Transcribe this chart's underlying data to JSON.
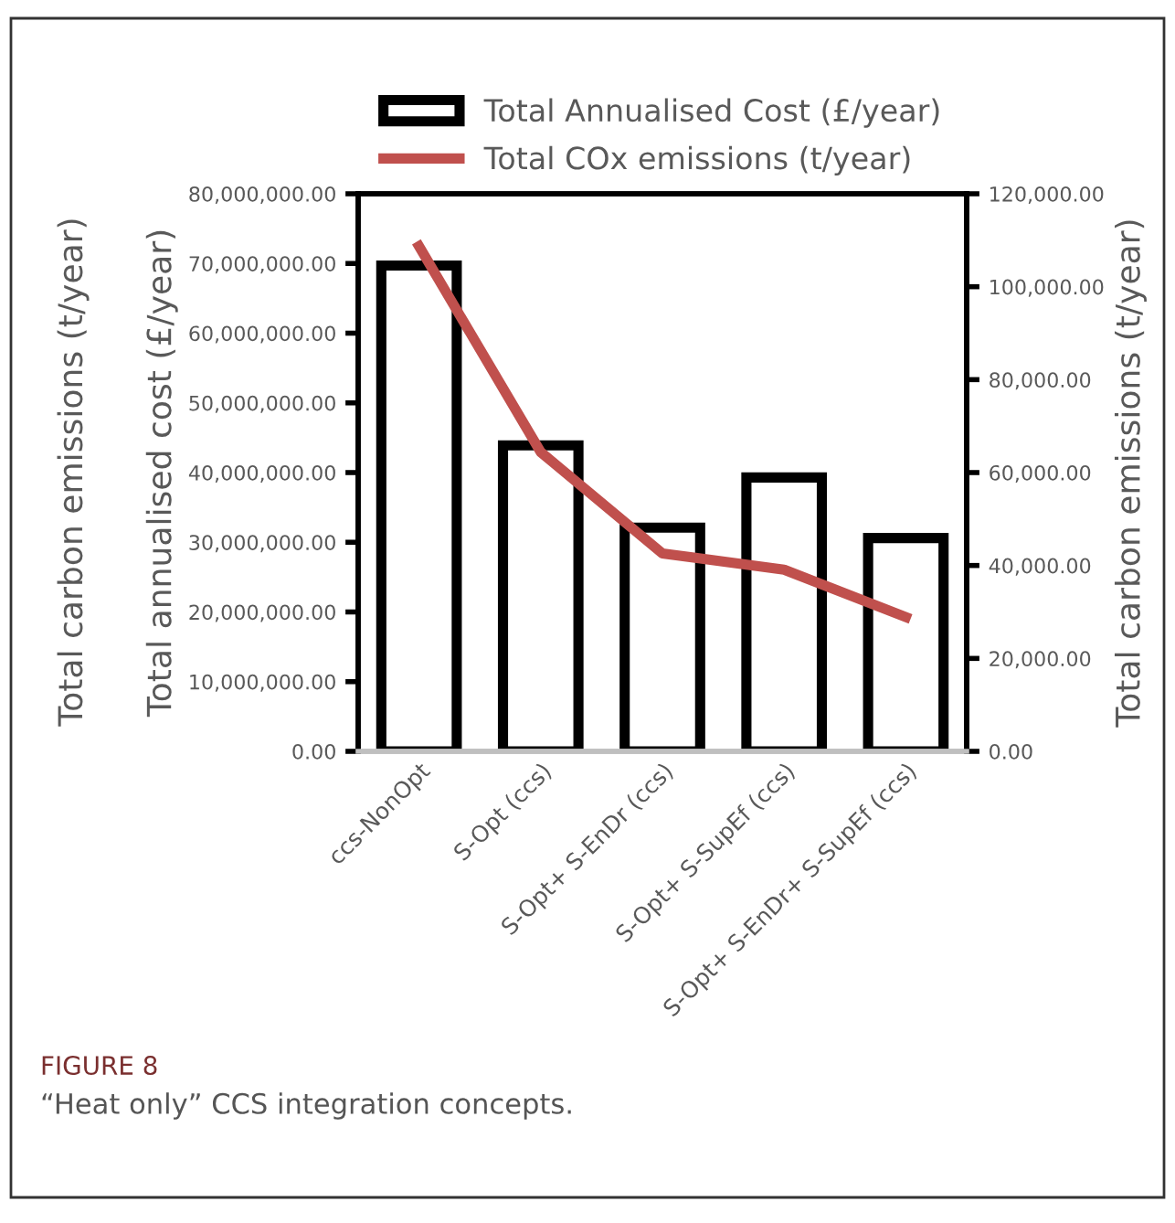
{
  "chart_data": {
    "type": "bar",
    "categories": [
      "ccs-NonOpt",
      "S-Opt (ccs)",
      "S-Opt+ S-EnDr (ccs)",
      "S-Opt+ S-SupEf (ccs)",
      "S-Opt+ S-EnDr+ S-SupEf (ccs)"
    ],
    "series": [
      {
        "name": "Total Annualised Cost (£/year)",
        "color": "#000000",
        "values": [
          69700000,
          43900000,
          32100000,
          39300000,
          30600000
        ]
      },
      {
        "name": "Total COx emissions (t/year)",
        "type": "line",
        "axis": "y2",
        "color": "#c0504d",
        "values": [
          108700,
          64400,
          42600,
          39100,
          28900
        ]
      }
    ],
    "ylabel": "Total annualised cost (£/year)",
    "y2label": "Total carbon emissions (t/year)",
    "ylim": [
      0,
      80000000
    ],
    "yticks": [
      {
        "value": 0,
        "label": "0.00"
      },
      {
        "value": 10000000,
        "label": "10,000,000.00"
      },
      {
        "value": 20000000,
        "label": "20,000,000.00"
      },
      {
        "value": 30000000,
        "label": "30,000,000.00"
      },
      {
        "value": 40000000,
        "label": "40,000,000.00"
      },
      {
        "value": 50000000,
        "label": "50,000,000.00"
      },
      {
        "value": 60000000,
        "label": "60,000,000.00"
      },
      {
        "value": 70000000,
        "label": "70,000,000.00"
      },
      {
        "value": 80000000,
        "label": "80,000,000.00"
      }
    ],
    "y2lim": [
      0,
      120000
    ],
    "y2ticks": [
      {
        "value": 0,
        "label": "0.00"
      },
      {
        "value": 20000,
        "label": "20,000.00"
      },
      {
        "value": 40000,
        "label": "40,000.00"
      },
      {
        "value": 60000,
        "label": "60,000.00"
      },
      {
        "value": 80000,
        "label": "80,000.00"
      },
      {
        "value": 100000,
        "label": "100,000.00"
      },
      {
        "value": 120000,
        "label": "120,000.00"
      }
    ],
    "annotations": [
      "Total carbon emissions (t/year)",
      "FIGURE 8",
      "“Heat only” CCS integration concepts."
    ],
    "legend": "top",
    "grid": false
  }
}
